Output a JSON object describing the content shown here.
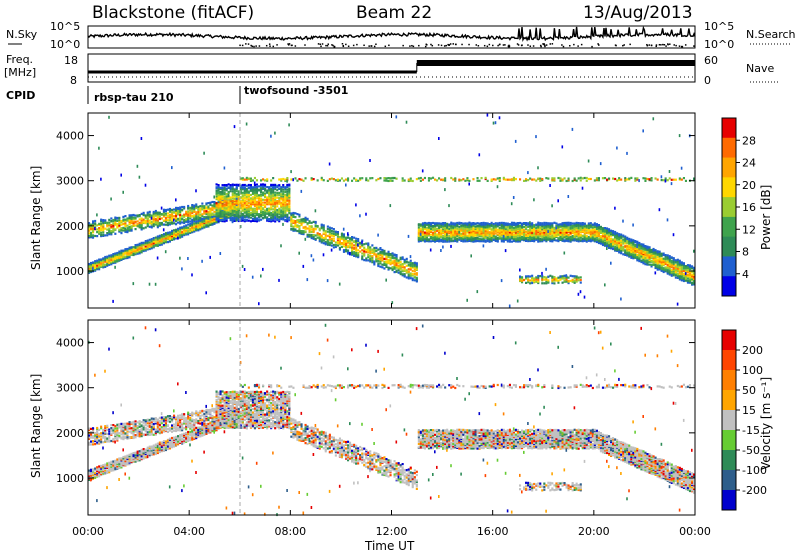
{
  "header": {
    "station": "Blackstone (fitACF)",
    "beam": "Beam 22",
    "date": "13/Aug/2013"
  },
  "noise_panel": {
    "left_label": "N.Sky",
    "right_label": "N.Search",
    "left_ticks": [
      "10^5",
      "10^0"
    ],
    "right_ticks": [
      "10^5",
      "10^0"
    ]
  },
  "freq_panel": {
    "left_label_line1": "Freq.",
    "left_label_line2": "[MHz]",
    "right_label": "Nave",
    "left_ticks": [
      "18",
      "8"
    ],
    "right_ticks": [
      "60",
      "0"
    ]
  },
  "cpid": {
    "label": "CPID",
    "programs": [
      {
        "name": "rbsp-tau 210",
        "start_hour": 0
      },
      {
        "name": "twofsound -3501",
        "start_hour": 6
      }
    ]
  },
  "x_axis": {
    "label": "Time UT",
    "tick_labels": [
      "00:00",
      "04:00",
      "08:00",
      "12:00",
      "16:00",
      "20:00",
      "00:00"
    ],
    "range_hours": [
      0,
      24
    ]
  },
  "chart_data": [
    {
      "type": "heatmap",
      "name": "power",
      "ylabel": "Slant Range [km]",
      "yticks": [
        1000,
        2000,
        3000,
        4000
      ],
      "ylim": [
        180,
        4500
      ],
      "xlim_hours": [
        0,
        24
      ],
      "colorbar_label": "Power [dB]",
      "colorbar_ticks": [
        28,
        24,
        20,
        16,
        12,
        8,
        4
      ],
      "colors": [
        "#0000e6",
        "#1f5fd0",
        "#2e8b57",
        "#3fa34d",
        "#9acd32",
        "#ffd700",
        "#ffa500",
        "#ff6a00",
        "#e60000"
      ]
    },
    {
      "type": "heatmap",
      "name": "velocity",
      "ylabel": "Slant Range [km]",
      "yticks": [
        1000,
        2000,
        3000,
        4000
      ],
      "ylim": [
        180,
        4500
      ],
      "xlim_hours": [
        0,
        24
      ],
      "colorbar_label": "Velocity [m s⁻¹]",
      "colorbar_ticks": [
        200,
        100,
        50,
        15,
        -15,
        -50,
        -100,
        -200
      ],
      "colors": [
        "#0000cd",
        "#2e5e8b",
        "#2e8b57",
        "#66cc33",
        "#c0c0c0",
        "#ffa500",
        "#ff7f00",
        "#ff4500",
        "#e60000"
      ]
    }
  ]
}
